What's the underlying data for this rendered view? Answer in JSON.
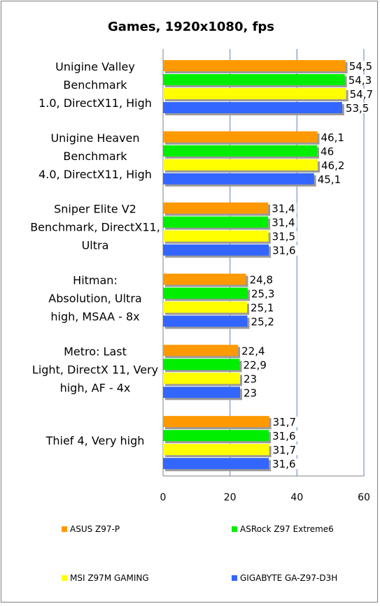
{
  "chart_data": {
    "type": "bar",
    "orientation": "horizontal",
    "title": "Games, 1920x1080, fps",
    "categories": [
      [
        "Unigine Valley",
        "Benchmark",
        "1.0, DirectX11, High"
      ],
      [
        "Unigine Heaven",
        "Benchmark",
        "4.0, DirectX11, High"
      ],
      [
        "Sniper Elite V2",
        "Benchmark, DirectX11,",
        "Ultra"
      ],
      [
        "Hitman:",
        "Absolution, Ultra",
        "high, MSAA - 8x"
      ],
      [
        "Metro: Last",
        "Light, DirectX 11, Very",
        "high, AF - 4x"
      ],
      [
        "Thief 4, Very high"
      ]
    ],
    "series": [
      {
        "name": "ASUS Z97-P",
        "color": "#FF9900",
        "values": [
          54.5,
          46.1,
          31.4,
          24.8,
          22.4,
          31.7
        ],
        "labels": [
          "54,5",
          "46,1",
          "31,4",
          "24,8",
          "22,4",
          "31,7"
        ]
      },
      {
        "name": "ASRock Z97 Extreme6",
        "color": "#00EE00",
        "values": [
          54.3,
          46,
          31.4,
          25.3,
          22.9,
          31.6
        ],
        "labels": [
          "54,3",
          "46",
          "31,4",
          "25,3",
          "22,9",
          "31,6"
        ]
      },
      {
        "name": "MSI Z97M GAMING",
        "color": "#FFFF00",
        "values": [
          54.7,
          46.2,
          31.5,
          25.1,
          23,
          31.7
        ],
        "labels": [
          "54,7",
          "46,2",
          "31,5",
          "25,1",
          "23",
          "31,7"
        ]
      },
      {
        "name": "GIGABYTE GA-Z97-D3H",
        "color": "#3366FF",
        "values": [
          53.5,
          45.1,
          31.6,
          25.2,
          23,
          31.6
        ],
        "labels": [
          "53,5",
          "45,1",
          "31,6",
          "25,2",
          "23",
          "31,6"
        ]
      }
    ],
    "xlim": [
      0,
      60
    ],
    "xticks": [
      0,
      20,
      40,
      60
    ],
    "tick_labels": [
      "0",
      "20",
      "40",
      "60"
    ],
    "grid": "vertical",
    "grid_color": "#7F9FCF",
    "legend_position": "bottom"
  }
}
